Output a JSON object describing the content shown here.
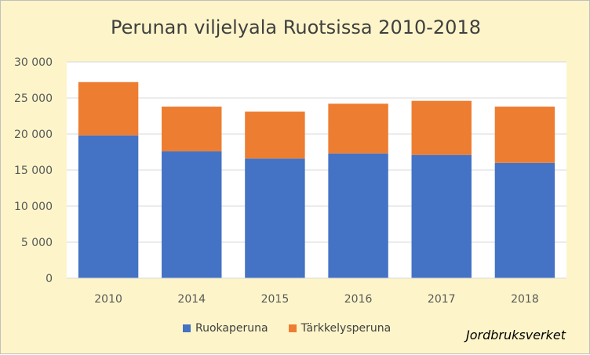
{
  "chart_data": {
    "type": "bar",
    "stacked": true,
    "title": "Perunan viljelyala Ruotsissa 2010-2018",
    "xlabel": "",
    "ylabel": "",
    "categories": [
      "2010",
      "2014",
      "2015",
      "2016",
      "2017",
      "2018"
    ],
    "series": [
      {
        "name": "Ruokaperuna",
        "color": "#4472c4",
        "values": [
          19800,
          17600,
          16600,
          17300,
          17100,
          16000
        ]
      },
      {
        "name": "Tärkkelysperuna",
        "color": "#ed7d31",
        "values": [
          7400,
          6200,
          6500,
          6900,
          7500,
          7800
        ]
      }
    ],
    "ylim": [
      0,
      30000
    ],
    "yticks": [
      0,
      5000,
      10000,
      15000,
      20000,
      25000,
      30000
    ],
    "ytick_labels": [
      "0",
      "5 000",
      "10 000",
      "15 000",
      "20 000",
      "25 000",
      "30 000"
    ],
    "grid": true,
    "legend_position": "bottom",
    "plot_background": "#ffffff",
    "chart_background": "#fdf5c9"
  },
  "source_note": "Jordbruksverket"
}
